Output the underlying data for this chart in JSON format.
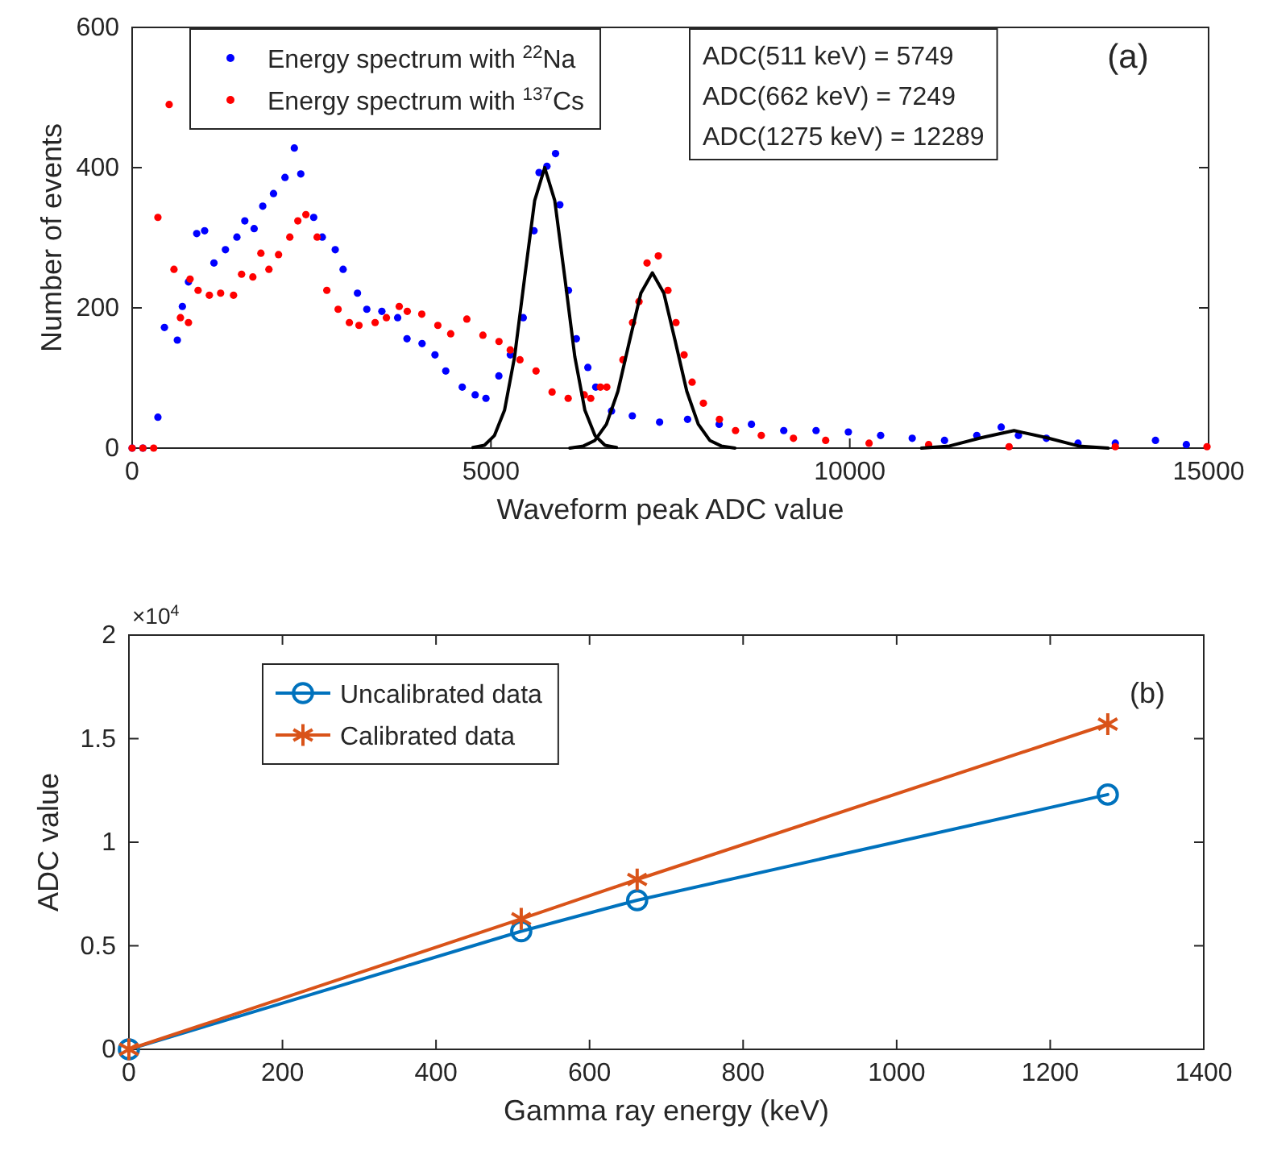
{
  "chart_data": [
    {
      "type": "scatter",
      "xlabel": "Waveform peak ADC value",
      "ylabel": "Number of events",
      "xlim": [
        0,
        15000
      ],
      "ylim": [
        0,
        600
      ],
      "xticks": [
        0,
        5000,
        10000,
        15000
      ],
      "yticks": [
        0,
        200,
        400,
        600
      ],
      "grid": false,
      "legend": "top left",
      "marker": "circle",
      "annotations": [
        "ADC(511 keV) = 5749",
        "ADC(662 keV) = 7249",
        "ADC(1275 keV) = 12289",
        "(a)"
      ],
      "series": [
        {
          "name": "Energy spectrum with $^{22}$Na",
          "color": "#0000ff",
          "x": [
            0,
            150,
            359,
            450,
            630,
            700,
            785,
            900,
            1010,
            1140,
            1300,
            1460,
            1570,
            1700,
            1820,
            1970,
            2130,
            2260,
            2350,
            2530,
            2650,
            2830,
            2940,
            3140,
            3270,
            3480,
            3700,
            3830,
            4040,
            4220,
            4370,
            4600,
            4780,
            4930,
            5110,
            5270,
            5450,
            5600,
            5670,
            5780,
            5900,
            5960,
            6080,
            6190,
            6350,
            6460,
            6680,
            6970,
            7350,
            7740,
            8180,
            8630,
            9080,
            9530,
            9980,
            10430,
            10870,
            11320,
            11770,
            12110,
            12350,
            12740,
            13180,
            13700,
            14260,
            14690
          ],
          "values": [
            0,
            0,
            44,
            172,
            154,
            202,
            237,
            306,
            310,
            264,
            283,
            301,
            324,
            313,
            345,
            363,
            386,
            428,
            391,
            329,
            301,
            283,
            255,
            221,
            198,
            195,
            186,
            156,
            149,
            133,
            110,
            87,
            76,
            71,
            103,
            133,
            186,
            310,
            393,
            402,
            420,
            347,
            225,
            156,
            115,
            87,
            53,
            46,
            37,
            41,
            34,
            34,
            25,
            25,
            23,
            18,
            14,
            11,
            18,
            30,
            18,
            14,
            7,
            7,
            11,
            5
          ]
        },
        {
          "name": "Energy spectrum with $^{137}$Cs",
          "color": "#ff0000",
          "x": [
            0,
            150,
            300,
            359,
            516,
            583,
            673,
            785,
            807,
            919,
            1076,
            1233,
            1413,
            1525,
            1682,
            1794,
            1906,
            2040,
            2197,
            2309,
            2421,
            2578,
            2713,
            2870,
            3027,
            3161,
            3386,
            3543,
            3722,
            3834,
            4036,
            4260,
            4439,
            4664,
            4888,
            5112,
            5269,
            5404,
            5628,
            5852,
            6076,
            6300,
            6390,
            6525,
            6614,
            6839,
            6973,
            7063,
            7175,
            7332,
            7466,
            7578,
            7691,
            7803,
            7960,
            8184,
            8408,
            8767,
            9215,
            9664,
            10269,
            11099,
            12220,
            13700,
            14978
          ],
          "values": [
            0,
            0,
            0,
            329,
            490,
            255,
            186,
            179,
            241,
            225,
            218,
            221,
            218,
            248,
            244,
            278,
            255,
            276,
            301,
            324,
            333,
            301,
            225,
            198,
            179,
            175,
            179,
            186,
            202,
            195,
            191,
            175,
            163,
            184,
            161,
            152,
            140,
            126,
            110,
            80,
            71,
            76,
            71,
            87,
            87,
            126,
            179,
            209,
            264,
            274,
            225,
            179,
            133,
            94,
            64,
            41,
            25,
            18,
            14,
            11,
            7,
            5,
            2,
            2,
            2
          ]
        },
        {
          "type": "line",
          "marker": "none",
          "color": "#000000",
          "x": [
            4749,
            4909,
            5049,
            5189,
            5329,
            5469,
            5609,
            5749,
            5889,
            6029,
            6169,
            6309,
            6449,
            6589,
            6749
          ],
          "values": [
            1,
            4,
            18,
            54,
            130,
            243,
            353,
            400,
            353,
            243,
            130,
            54,
            18,
            4,
            1
          ]
        },
        {
          "type": "line",
          "marker": "none",
          "color": "#000000",
          "x": [
            6099,
            6289,
            6449,
            6609,
            6769,
            6929,
            7089,
            7249,
            7409,
            7569,
            7729,
            7889,
            8049,
            8209,
            8399
          ],
          "values": [
            0,
            3,
            11,
            34,
            81,
            152,
            221,
            250,
            221,
            152,
            81,
            34,
            11,
            3,
            0
          ]
        },
        {
          "type": "line",
          "marker": "none",
          "color": "#000000",
          "x": [
            11000,
            11389,
            11839,
            12289,
            12739,
            13189,
            13600
          ],
          "values": [
            0,
            3,
            15,
            25,
            15,
            3,
            0
          ]
        }
      ]
    },
    {
      "type": "line",
      "xlabel": "Gamma ray energy (keV)",
      "ylabel": "ADC value",
      "xlim": [
        0,
        1400
      ],
      "ylim": [
        0,
        2
      ],
      "xticks": [
        0,
        200,
        400,
        600,
        800,
        1000,
        1200,
        1400
      ],
      "yticks": [
        0,
        0.5,
        1,
        1.5,
        2
      ],
      "grid": false,
      "legend": "top left",
      "line_style": "solid",
      "annotations": [
        "×10$^{4}$",
        "(b)"
      ],
      "series": [
        {
          "name": "Uncalibrated data",
          "color": "#0072bd",
          "marker": "circle",
          "x": [
            0,
            511,
            662,
            1275
          ],
          "values": [
            0,
            0.57,
            0.72,
            1.23
          ]
        },
        {
          "name": "Calibrated data",
          "color": "#d95319",
          "marker": "cross",
          "x": [
            0,
            511,
            662,
            1275
          ],
          "values": [
            0,
            0.63,
            0.82,
            1.57
          ]
        }
      ]
    }
  ]
}
